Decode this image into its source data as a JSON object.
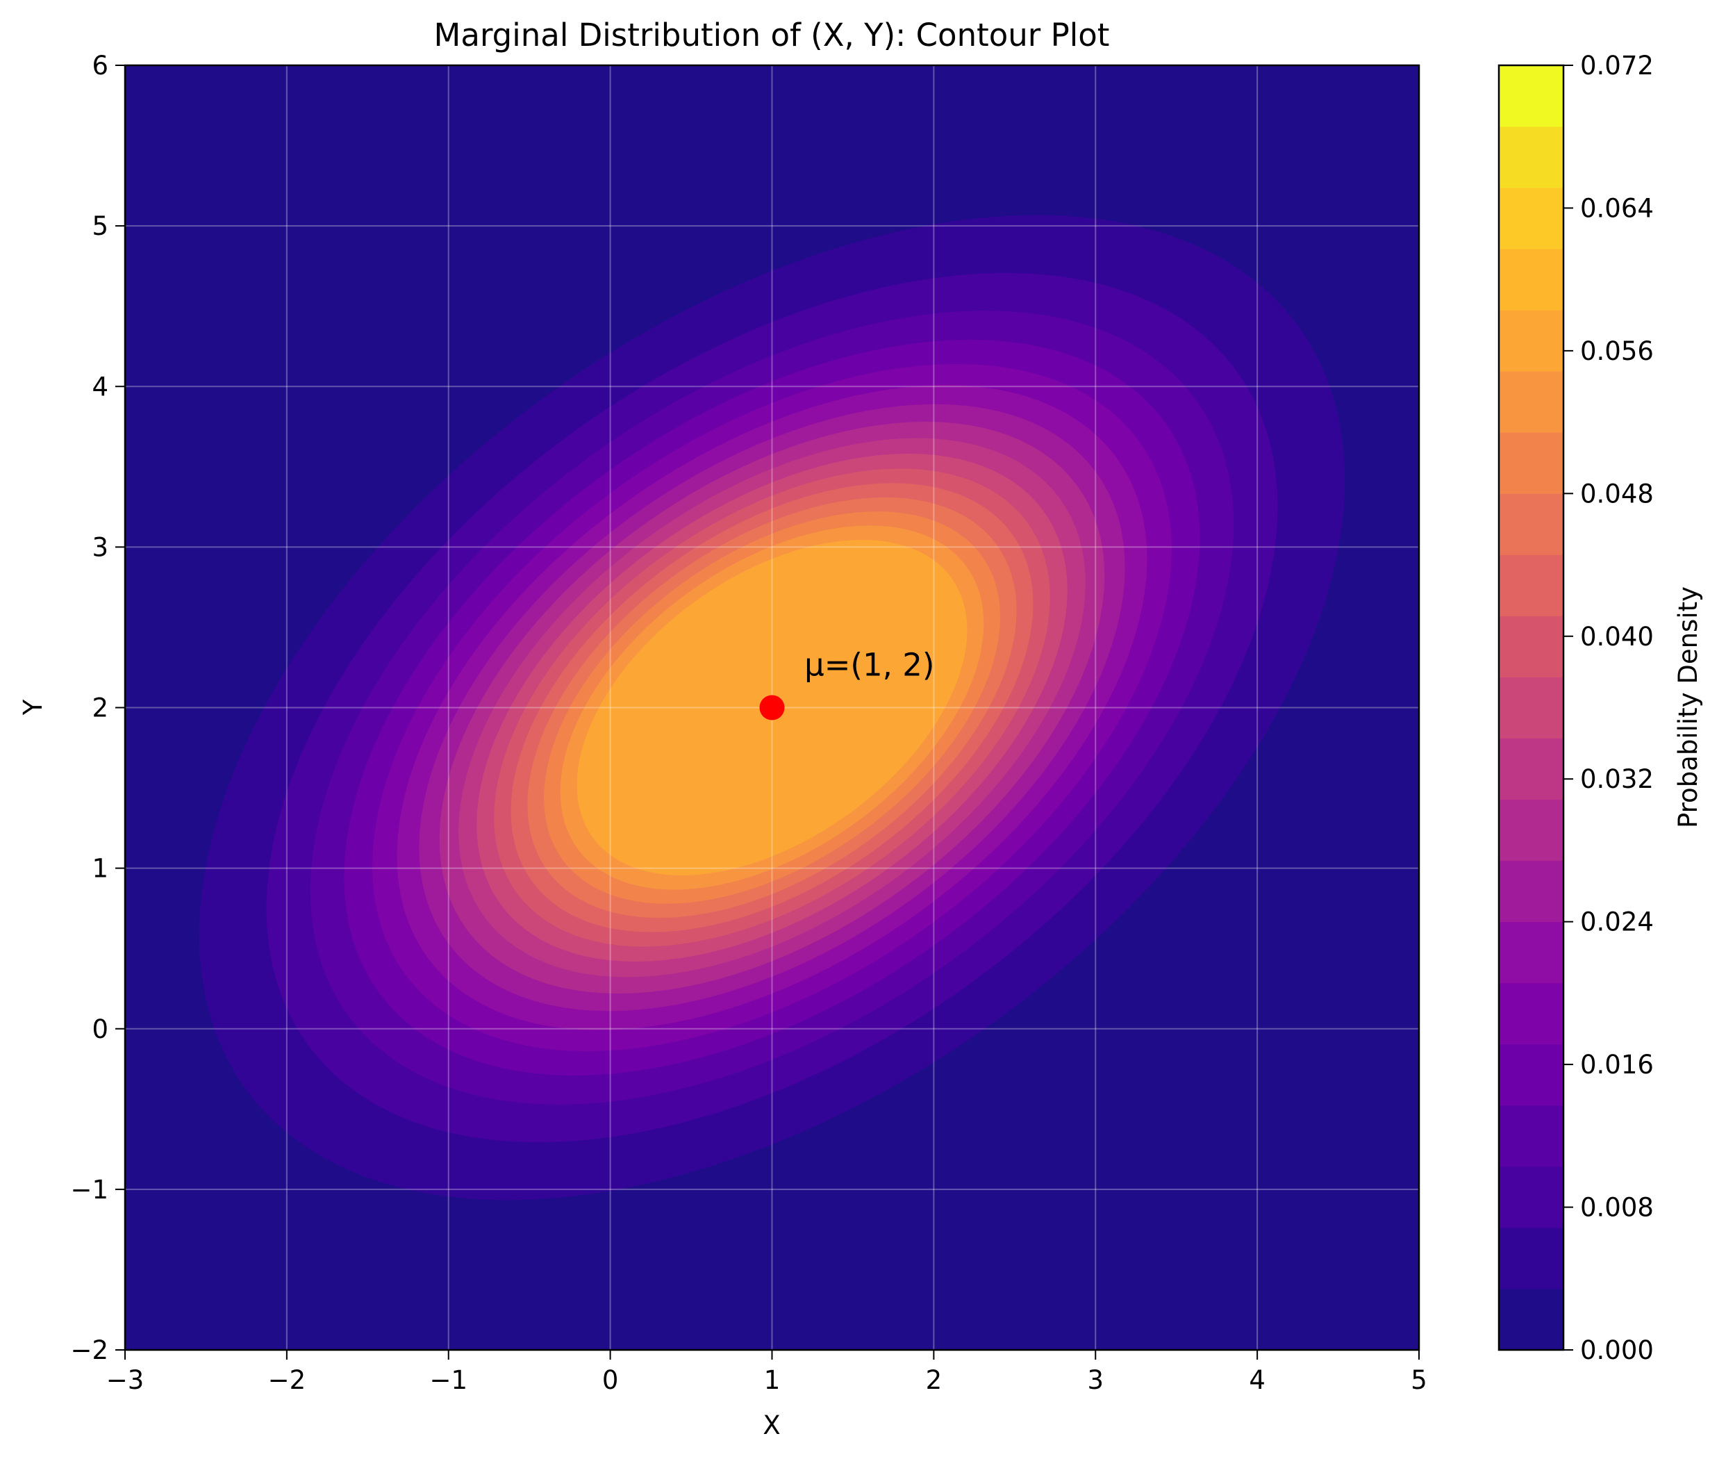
{
  "chart_data": {
    "type": "contour",
    "title": "Marginal Distribution of (X, Y): Contour Plot",
    "xlabel": "X",
    "ylabel": "Y",
    "xlim": [
      -3,
      5
    ],
    "ylim": [
      -2,
      6
    ],
    "x_ticks": [
      -3,
      -2,
      -1,
      0,
      1,
      2,
      3,
      4,
      5
    ],
    "x_tick_labels": [
      "−3",
      "−2",
      "−1",
      "0",
      "1",
      "2",
      "3",
      "4",
      "5"
    ],
    "y_ticks": [
      -2,
      -1,
      0,
      1,
      2,
      3,
      4,
      5,
      6
    ],
    "y_tick_labels": [
      "−2",
      "−1",
      "0",
      "1",
      "2",
      "3",
      "4",
      "5",
      "6"
    ],
    "grid": true,
    "colormap": "plasma",
    "distribution": {
      "mean": [
        1,
        2
      ],
      "covariance": [
        [
          2.0,
          0.8
        ],
        [
          0.8,
          1.5
        ]
      ]
    },
    "contour_levels": [
      0.0,
      0.0045,
      0.009,
      0.0135,
      0.018,
      0.0225,
      0.027,
      0.0315,
      0.036,
      0.0405,
      0.045,
      0.0495,
      0.054,
      0.0585,
      0.063,
      0.0675,
      0.072
    ],
    "colorbar": {
      "label": "Probability Density",
      "range": [
        0.0,
        0.072
      ],
      "ticks": [
        0.0,
        0.008,
        0.016,
        0.024,
        0.032,
        0.04,
        0.048,
        0.056,
        0.064,
        0.072
      ],
      "tick_labels": [
        "0.000",
        "0.008",
        "0.016",
        "0.024",
        "0.032",
        "0.040",
        "0.048",
        "0.056",
        "0.064",
        "0.072"
      ],
      "level_colors": [
        "#1f0c89",
        "#330597",
        "#4702a0",
        "#5a01a5",
        "#6d00a8",
        "#7e03a8",
        "#8f0da4",
        "#a01a9c",
        "#b02a8f",
        "#bd3786",
        "#cb4679",
        "#d6556d",
        "#e16462",
        "#ea7457",
        "#f2844b",
        "#f89540",
        "#fca636",
        "#feb72d",
        "#fcc926",
        "#f7dc24",
        "#f0f921"
      ]
    },
    "mean_marker": {
      "x": 1,
      "y": 2,
      "color": "#ff0000"
    },
    "annotation": {
      "text": "μ=(1, 2)",
      "x": 1.2,
      "y": 2.2
    }
  }
}
